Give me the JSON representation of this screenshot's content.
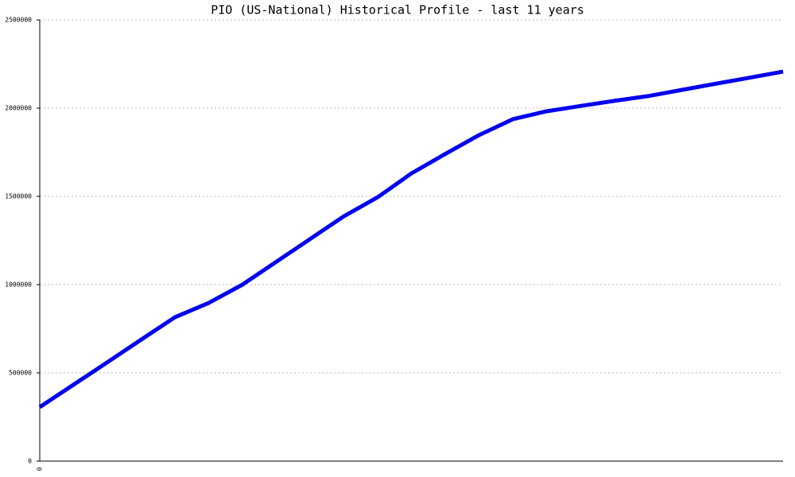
{
  "chart_data": {
    "type": "line",
    "title": "PIO (US-National) Historical Profile - last 11 years",
    "categories": [
      "0",
      null,
      null,
      null,
      null,
      null,
      null,
      null,
      null,
      null,
      null,
      null,
      null,
      null,
      null,
      null,
      null,
      null,
      null,
      null,
      null,
      null,
      null
    ],
    "series": [
      {
        "name": "PIO",
        "color": "#0000ee",
        "values": [
          306000,
          433000,
          560000,
          688000,
          815000,
          896000,
          1000000,
          1129000,
          1258000,
          1387000,
          1495000,
          1630000,
          1740000,
          1847000,
          1937000,
          1982000,
          2012000,
          2041000,
          2068000,
          2103000,
          2138000,
          2172000,
          2207000
        ]
      }
    ],
    "ylim": [
      0,
      2500000
    ],
    "yticks": [
      0,
      500000,
      1000000,
      1500000,
      2000000,
      2500000
    ],
    "grid": true
  }
}
